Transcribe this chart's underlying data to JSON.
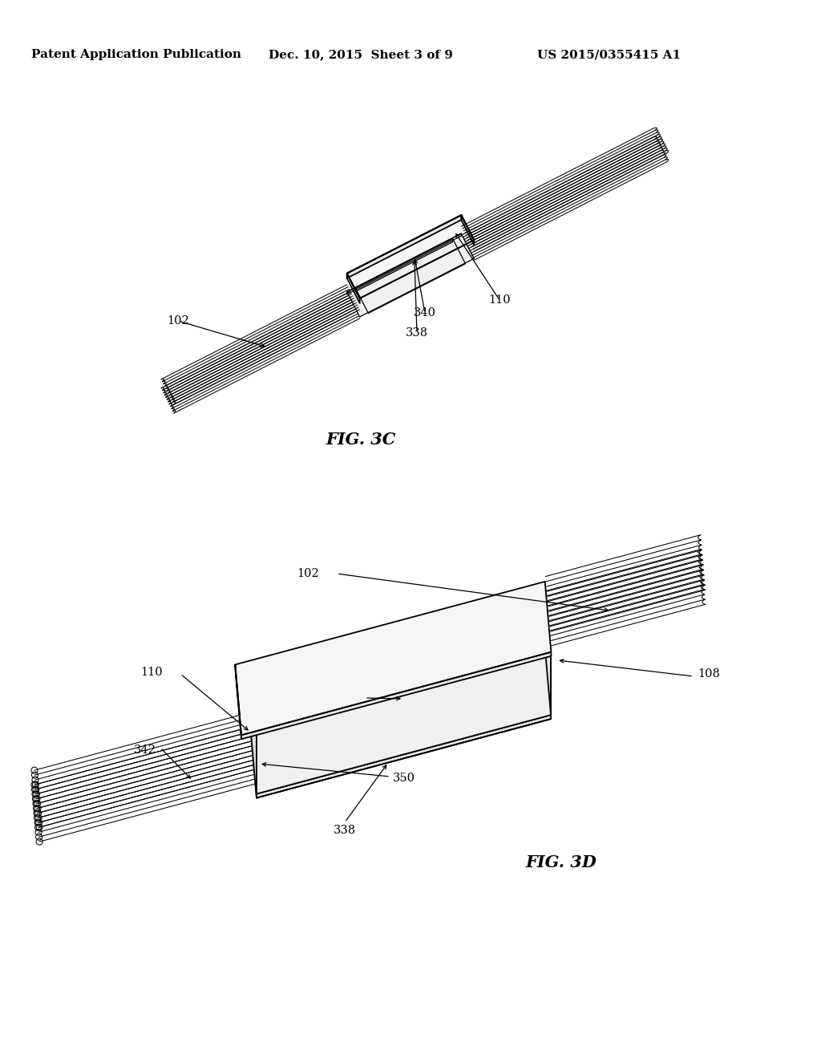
{
  "background_color": "#ffffff",
  "header_left": "Patent Application Publication",
  "header_center": "Dec. 10, 2015  Sheet 3 of 9",
  "header_right": "US 2015/0355415 A1",
  "fig3c_label": "FIG. 3C",
  "fig3d_label": "FIG. 3D",
  "line_color": "#000000",
  "lw_main": 1.3,
  "lw_fiber": 0.75,
  "lw_thin": 0.9,
  "label_fontsize": 10.5,
  "figlabel_fontsize": 15
}
